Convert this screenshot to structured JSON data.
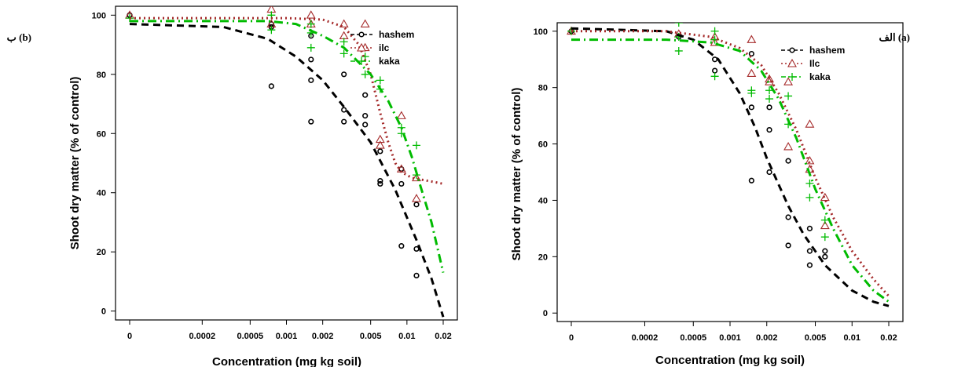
{
  "chart_data": [
    {
      "type": "scatter",
      "panel_label": "ب (b)",
      "xlabel": "Concentration (mg kg soil)",
      "ylabel": "Shoot dry matter (% of control)",
      "x_scale": "log",
      "x_ticks": [
        {
          "label": "0",
          "value": 5e-05
        },
        {
          "label": "0.0002",
          "value": 0.0002
        },
        {
          "label": "0.0005",
          "value": 0.0005
        },
        {
          "label": "0.001",
          "value": 0.001
        },
        {
          "label": "0.002",
          "value": 0.002
        },
        {
          "label": "0.005",
          "value": 0.005
        },
        {
          "label": "0.01",
          "value": 0.01
        },
        {
          "label": "0.02",
          "value": 0.02
        }
      ],
      "y_ticks": [
        0,
        20,
        40,
        60,
        80,
        100
      ],
      "ylim": [
        -3,
        103
      ],
      "legend_position": "top-right",
      "series": [
        {
          "name": "hashem",
          "color": "#000000",
          "marker": "circle",
          "line": "dashed",
          "points": [
            [
              5e-05,
              100
            ],
            [
              5e-05,
              100
            ],
            [
              0.00075,
              76
            ],
            [
              0.00075,
              96
            ],
            [
              0.00075,
              97
            ],
            [
              0.0016,
              64
            ],
            [
              0.0016,
              78
            ],
            [
              0.0016,
              85
            ],
            [
              0.0016,
              93
            ],
            [
              0.003,
              64
            ],
            [
              0.003,
              68
            ],
            [
              0.003,
              80
            ],
            [
              0.0045,
              63
            ],
            [
              0.0045,
              66
            ],
            [
              0.0045,
              73
            ],
            [
              0.006,
              43
            ],
            [
              0.006,
              44
            ],
            [
              0.006,
              54
            ],
            [
              0.009,
              22
            ],
            [
              0.009,
              43
            ],
            [
              0.009,
              48
            ],
            [
              0.012,
              12
            ],
            [
              0.012,
              21
            ],
            [
              0.012,
              36
            ]
          ],
          "curve": [
            [
              5e-05,
              97
            ],
            [
              0.0003,
              96
            ],
            [
              0.0007,
              92
            ],
            [
              0.0012,
              86
            ],
            [
              0.002,
              78
            ],
            [
              0.003,
              69
            ],
            [
              0.005,
              57
            ],
            [
              0.008,
              41
            ],
            [
              0.012,
              24
            ],
            [
              0.016,
              11
            ],
            [
              0.02,
              -2
            ]
          ]
        },
        {
          "name": "ilc",
          "color": "#a52a2a",
          "marker": "triangle",
          "line": "dotted",
          "points": [
            [
              5e-05,
              100
            ],
            [
              0.00075,
              97
            ],
            [
              0.00075,
              102
            ],
            [
              0.0016,
              97
            ],
            [
              0.0016,
              100
            ],
            [
              0.003,
              97
            ],
            [
              0.003,
              93
            ],
            [
              0.0045,
              89
            ],
            [
              0.0045,
              97
            ],
            [
              0.006,
              56
            ],
            [
              0.006,
              58
            ],
            [
              0.009,
              48
            ],
            [
              0.009,
              66
            ],
            [
              0.012,
              38
            ],
            [
              0.012,
              45
            ]
          ],
          "curve": [
            [
              5e-05,
              99
            ],
            [
              0.001,
              99
            ],
            [
              0.002,
              98.5
            ],
            [
              0.003,
              96
            ],
            [
              0.004,
              90
            ],
            [
              0.005,
              80
            ],
            [
              0.006,
              67
            ],
            [
              0.007,
              57
            ],
            [
              0.008,
              50
            ],
            [
              0.009,
              47
            ],
            [
              0.011,
              45
            ],
            [
              0.015,
              44
            ],
            [
              0.02,
              43
            ]
          ]
        },
        {
          "name": "kaka",
          "color": "#00bb00",
          "marker": "plus",
          "line": "dashdot",
          "points": [
            [
              5e-05,
              99
            ],
            [
              0.00075,
              95
            ],
            [
              0.00075,
              100
            ],
            [
              0.0016,
              89
            ],
            [
              0.0016,
              94
            ],
            [
              0.0016,
              97
            ],
            [
              0.003,
              87
            ],
            [
              0.003,
              91
            ],
            [
              0.0045,
              80
            ],
            [
              0.0045,
              86
            ],
            [
              0.006,
              75
            ],
            [
              0.006,
              78
            ],
            [
              0.009,
              60
            ],
            [
              0.009,
              62
            ],
            [
              0.012,
              46
            ],
            [
              0.012,
              56
            ]
          ],
          "curve": [
            [
              5e-05,
              98
            ],
            [
              0.0007,
              98
            ],
            [
              0.0012,
              97
            ],
            [
              0.002,
              93
            ],
            [
              0.003,
              89
            ],
            [
              0.005,
              80
            ],
            [
              0.007,
              71
            ],
            [
              0.009,
              62
            ],
            [
              0.011,
              52
            ],
            [
              0.013,
              42
            ],
            [
              0.016,
              30
            ],
            [
              0.02,
              13
            ]
          ]
        }
      ]
    },
    {
      "type": "scatter",
      "panel_label": "الف (a)",
      "xlabel": "Concentration (mg kg soil)",
      "ylabel": "Shoot dry matter (% of control)",
      "x_scale": "log",
      "x_ticks": [
        {
          "label": "0",
          "value": 5e-05
        },
        {
          "label": "0.0002",
          "value": 0.0002
        },
        {
          "label": "0.0005",
          "value": 0.0005
        },
        {
          "label": "0.001",
          "value": 0.001
        },
        {
          "label": "0.002",
          "value": 0.002
        },
        {
          "label": "0.005",
          "value": 0.005
        },
        {
          "label": "0.01",
          "value": 0.01
        },
        {
          "label": "0.02",
          "value": 0.02
        }
      ],
      "y_ticks": [
        0,
        20,
        40,
        60,
        80,
        100
      ],
      "ylim": [
        -3,
        103
      ],
      "legend_position": "top-right",
      "series": [
        {
          "name": "hashem",
          "color": "#000000",
          "marker": "circle",
          "line": "dashed",
          "points": [
            [
              5e-05,
              100
            ],
            [
              0.00038,
              98
            ],
            [
              0.00075,
              86
            ],
            [
              0.00075,
              90
            ],
            [
              0.0015,
              47
            ],
            [
              0.0015,
              73
            ],
            [
              0.0015,
              92
            ],
            [
              0.0021,
              50
            ],
            [
              0.0021,
              65
            ],
            [
              0.0021,
              73
            ],
            [
              0.003,
              24
            ],
            [
              0.003,
              34
            ],
            [
              0.003,
              54
            ],
            [
              0.0045,
              17
            ],
            [
              0.0045,
              22
            ],
            [
              0.0045,
              30
            ],
            [
              0.006,
              20
            ],
            [
              0.006,
              22
            ]
          ],
          "curve": [
            [
              5e-05,
              101
            ],
            [
              0.0003,
              100
            ],
            [
              0.0005,
              97
            ],
            [
              0.0008,
              90
            ],
            [
              0.0012,
              78
            ],
            [
              0.0016,
              66
            ],
            [
              0.002,
              55
            ],
            [
              0.003,
              38
            ],
            [
              0.004,
              28
            ],
            [
              0.006,
              17
            ],
            [
              0.01,
              8
            ],
            [
              0.015,
              4
            ],
            [
              0.02,
              2.5
            ]
          ]
        },
        {
          "name": "Ilc",
          "color": "#a52a2a",
          "marker": "triangle",
          "line": "dotted",
          "points": [
            [
              5e-05,
              100
            ],
            [
              0.00038,
              99
            ],
            [
              0.00075,
              96
            ],
            [
              0.00075,
              98
            ],
            [
              0.0015,
              85
            ],
            [
              0.0015,
              97
            ],
            [
              0.0021,
              82
            ],
            [
              0.0021,
              83
            ],
            [
              0.003,
              59
            ],
            [
              0.003,
              82
            ],
            [
              0.0045,
              51
            ],
            [
              0.0045,
              54
            ],
            [
              0.0045,
              67
            ],
            [
              0.006,
              41
            ],
            [
              0.006,
              31
            ]
          ],
          "curve": [
            [
              5e-05,
              100
            ],
            [
              0.0003,
              100
            ],
            [
              0.0007,
              98
            ],
            [
              0.0012,
              94
            ],
            [
              0.0018,
              88
            ],
            [
              0.0025,
              78
            ],
            [
              0.0035,
              65
            ],
            [
              0.005,
              48
            ],
            [
              0.007,
              34
            ],
            [
              0.01,
              22
            ],
            [
              0.015,
              12
            ],
            [
              0.02,
              6
            ]
          ]
        },
        {
          "name": "kaka",
          "color": "#00bb00",
          "marker": "plus",
          "line": "dashdot",
          "points": [
            [
              5e-05,
              100
            ],
            [
              0.00038,
              93
            ],
            [
              0.00038,
              98
            ],
            [
              0.00038,
              103
            ],
            [
              0.00075,
              84
            ],
            [
              0.00075,
              97
            ],
            [
              0.00075,
              100
            ],
            [
              0.0015,
              78
            ],
            [
              0.0015,
              79
            ],
            [
              0.0021,
              76
            ],
            [
              0.0021,
              79
            ],
            [
              0.003,
              67
            ],
            [
              0.003,
              77
            ],
            [
              0.0045,
              41
            ],
            [
              0.0045,
              46
            ],
            [
              0.006,
              27
            ],
            [
              0.006,
              33
            ]
          ],
          "curve": [
            [
              5e-05,
              97
            ],
            [
              0.0003,
              97
            ],
            [
              0.0007,
              96
            ],
            [
              0.0012,
              93
            ],
            [
              0.0018,
              86
            ],
            [
              0.0025,
              76
            ],
            [
              0.0035,
              62
            ],
            [
              0.005,
              44
            ],
            [
              0.007,
              30
            ],
            [
              0.01,
              17
            ],
            [
              0.015,
              8
            ],
            [
              0.02,
              4
            ]
          ]
        }
      ]
    }
  ]
}
